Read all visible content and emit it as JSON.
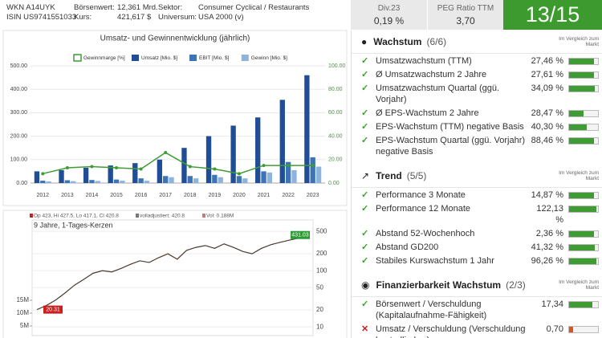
{
  "header": {
    "wkn": "WKN A14UYK",
    "isin": "ISIN US9741551033",
    "fields": [
      {
        "label": "Börsenwert:",
        "value": "12,361 Mrd."
      },
      {
        "label": "Kurs:",
        "value": "421,617 $"
      },
      {
        "label": "Sektor:",
        "value": "Consumer Cyclical / Restaurants"
      },
      {
        "label": "Universum:",
        "value": "USA 2000 (v)"
      }
    ]
  },
  "kpis": [
    {
      "label": "Div.23",
      "value": "0,19 %"
    },
    {
      "label": "PEG Ratio TTM",
      "value": "3,70"
    }
  ],
  "score": "13/15",
  "chart_data": [
    {
      "type": "bar",
      "title": "Umsatz- und Gewinnentwicklung (jährlich)",
      "categories": [
        "2012",
        "2013",
        "2014",
        "2015",
        "2016",
        "2017",
        "2018",
        "2019",
        "2020",
        "2021",
        "2022",
        "2023"
      ],
      "series": [
        {
          "name": "Gewinnmarge [%]",
          "color": "#3f9c35",
          "type": "line",
          "axis": "y2",
          "values": [
            8,
            13,
            14,
            13,
            12,
            26,
            14,
            12,
            8,
            15,
            15,
            15
          ]
        },
        {
          "name": "Umsatz [Mio. $]",
          "color": "#1f4e96",
          "values": [
            50,
            55,
            65,
            75,
            85,
            100,
            150,
            200,
            245,
            280,
            355,
            460
          ]
        },
        {
          "name": "EBIT [Mio. $]",
          "color": "#3d74b5",
          "values": [
            10,
            12,
            13,
            15,
            20,
            30,
            30,
            35,
            30,
            50,
            90,
            110
          ]
        },
        {
          "name": "Gewinn [Mio. $]",
          "color": "#8db4dd",
          "values": [
            7,
            8,
            9,
            10,
            10,
            25,
            20,
            25,
            20,
            45,
            55,
            70
          ]
        }
      ],
      "ylim": [
        0,
        500
      ],
      "yticks": [
        {
          "value": 0,
          "label": "0.00"
        },
        {
          "value": 100,
          "label": "100.00"
        },
        {
          "value": 200,
          "label": "200.00"
        },
        {
          "value": 300,
          "label": "300.00"
        },
        {
          "value": 400,
          "label": "400.00"
        },
        {
          "value": 500,
          "label": "500.00"
        }
      ],
      "y2lim": [
        0,
        100
      ],
      "y2ticks": [
        {
          "value": 0,
          "label": "0.00"
        },
        {
          "value": 20,
          "label": "20.00"
        },
        {
          "value": 40,
          "label": "40.00"
        },
        {
          "value": 60,
          "label": "60.00"
        },
        {
          "value": 80,
          "label": "80.00"
        },
        {
          "value": 100,
          "label": "100.00"
        }
      ],
      "grid": true
    },
    {
      "type": "line",
      "info": [
        "Op 423, Hi 427.5, Lo 417.1, Cl 420.8",
        "volladjustiert: 420.8",
        "Vol: 0.188M"
      ],
      "subtitle": "9 Jahre, 1-Tages-Kerzen",
      "series": [
        {
          "color": "#4a3a30",
          "values": [
            20.31,
            24,
            30,
            40,
            55,
            70,
            90,
            100,
            95,
            110,
            130,
            150,
            140,
            170,
            200,
            160,
            230,
            260,
            280,
            250,
            300,
            260,
            220,
            200,
            250,
            290,
            320,
            350,
            380,
            431.03
          ]
        }
      ],
      "log_scale": true,
      "ylim": [
        7,
        700
      ],
      "yticks": [
        10,
        20,
        50,
        100,
        200,
        500
      ],
      "volume_lim": [
        0,
        20000000
      ],
      "volume_ticks": [
        {
          "value": 5000000,
          "label": "5M"
        },
        {
          "value": 10000000,
          "label": "10M"
        },
        {
          "value": 15000000,
          "label": "15M"
        }
      ],
      "annotations": [
        {
          "value": 431.03,
          "color": "#2e9a36"
        },
        {
          "value": 20.31,
          "color": "#c8201e"
        }
      ]
    }
  ],
  "sections": [
    {
      "title": "Wachstum",
      "count": "(6/6)",
      "compare": "Im Vergleich zum Markt",
      "rows": [
        {
          "name": "Umsatzwachstum (TTM)",
          "value": "27,46 %",
          "ok": true,
          "score": 0.85,
          "color": "#3f9c35"
        },
        {
          "name": "Ø Umsatzwachstum 2 Jahre",
          "value": "27,61 %",
          "ok": true,
          "score": 0.85,
          "color": "#3f9c35"
        },
        {
          "name": "Umsatzwachstum Quartal (ggü. Vorjahr)",
          "value": "34,09 %",
          "ok": true,
          "score": 0.9,
          "color": "#3f9c35"
        },
        {
          "name": "Ø EPS-Wachstum 2 Jahre",
          "value": "28,47 %",
          "ok": true,
          "score": 0.5,
          "color": "#3f9c35"
        },
        {
          "name": "EPS-Wachstum (TTM) negative Basis",
          "value": "40,30 %",
          "ok": true,
          "score": 0.6,
          "color": "#3f9c35"
        },
        {
          "name": "EPS-Wachstum Quartal (ggü. Vorjahr) negative Basis",
          "value": "88,46 %",
          "ok": true,
          "score": 0.85,
          "color": "#3f9c35"
        }
      ]
    },
    {
      "title": "Trend",
      "count": "(5/5)",
      "compare": "Im Vergleich zum Markt",
      "rows": [
        {
          "name": "Performance 3 Monate",
          "value": "14,87 %",
          "ok": true,
          "score": 0.85,
          "color": "#3f9c35"
        },
        {
          "name": "Performance 12 Monate",
          "value": "122,13 %",
          "ok": true,
          "score": 0.95,
          "color": "#3f9c35"
        },
        {
          "name": "Abstand 52-Wochenhoch",
          "value": "2,36 %",
          "ok": true,
          "score": 0.85,
          "color": "#3f9c35"
        },
        {
          "name": "Abstand GD200",
          "value": "41,32 %",
          "ok": true,
          "score": 0.9,
          "color": "#3f9c35"
        },
        {
          "name": "Stabiles Kurswachstum 1 Jahr",
          "value": "96,26 %",
          "ok": true,
          "score": 0.95,
          "color": "#3f9c35"
        }
      ]
    },
    {
      "title": "Finanzierbarkeit Wachstum",
      "count": "(2/3)",
      "compare": "Im Vergleich zum Markt",
      "rows": [
        {
          "name": "Börsenwert / Verschuldung (Kapitalaufnahme-Fähigkeit)",
          "value": "17,34",
          "ok": true,
          "score": 0.8,
          "color": "#3f9c35"
        },
        {
          "name": "Umsatz / Verschuldung (Verschuldung kontrollierbar)",
          "value": "0,70",
          "ok": false,
          "score": 0.15,
          "color": "#d9541e"
        }
      ]
    }
  ]
}
